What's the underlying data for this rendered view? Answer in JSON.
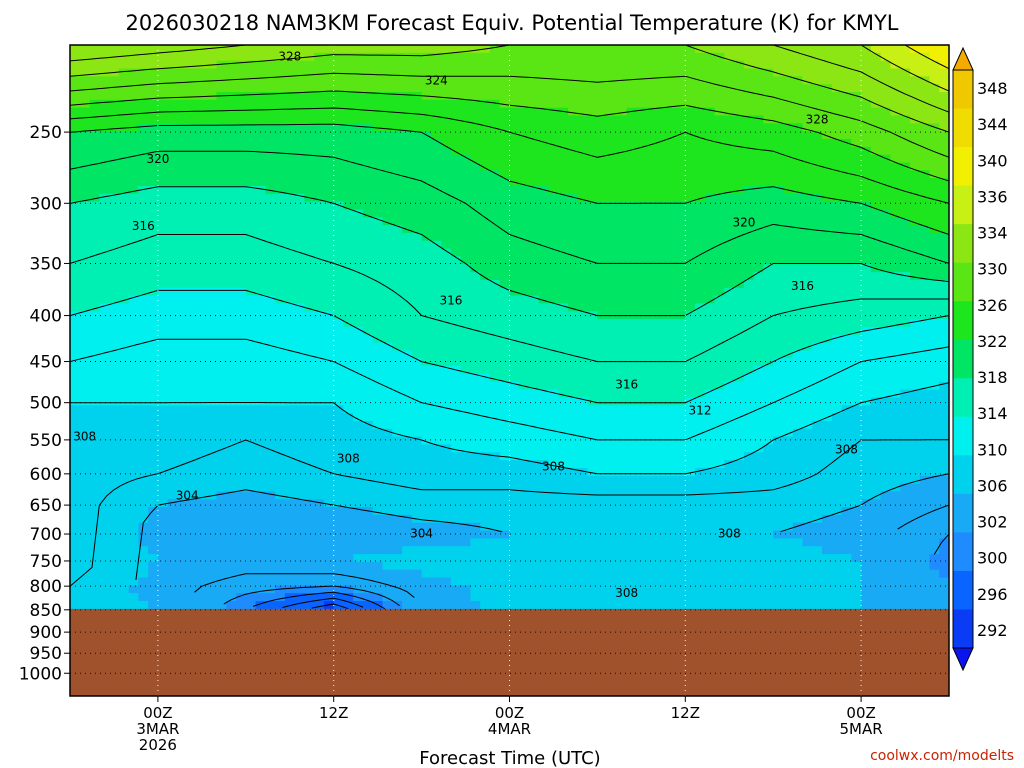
{
  "title": "2026030218 NAM3KM Forecast Equiv. Potential Temperature (K) for KMYL",
  "credit": "coolwx.com/modelts",
  "chart_data": {
    "type": "heatmap",
    "title": "2026030218 NAM3KM Forecast Equiv. Potential Temperature (K) for KMYL",
    "xlabel": "Forecast Time (UTC)",
    "ylabel": "",
    "x_ticks": [
      {
        "hour": 6,
        "lines": [
          "00Z",
          "3MAR",
          "2026"
        ]
      },
      {
        "hour": 18,
        "lines": [
          "12Z"
        ]
      },
      {
        "hour": 30,
        "lines": [
          "00Z",
          "4MAR"
        ]
      },
      {
        "hour": 42,
        "lines": [
          "12Z"
        ]
      },
      {
        "hour": 54,
        "lines": [
          "00Z",
          "5MAR"
        ]
      }
    ],
    "x_range_hours": [
      0,
      60
    ],
    "y_ticks": [
      250,
      300,
      350,
      400,
      450,
      500,
      550,
      600,
      650,
      700,
      750,
      800,
      850,
      900,
      950,
      1000
    ],
    "y_range_hpa": [
      200,
      1060
    ],
    "y_scale": "log-pressure",
    "grid": "dotted",
    "surface_pressure_hpa": 848,
    "below_ground_color": "#a0522d",
    "units": "K",
    "colorbar": {
      "levels": [
        292,
        296,
        300,
        302,
        306,
        310,
        314,
        318,
        322,
        326,
        330,
        334,
        336,
        340,
        344,
        348
      ],
      "colors": [
        "#0a14f0",
        "#0a3cf5",
        "#0a64ff",
        "#1e8cff",
        "#18aaf5",
        "#00d2ee",
        "#00f0f0",
        "#00f0b4",
        "#00e664",
        "#1ee61e",
        "#5ae614",
        "#8ce614",
        "#c8f014",
        "#f0f000",
        "#f0dc00",
        "#f0c800",
        "#f5aa00"
      ]
    },
    "contour_interval": 2,
    "contour_labels": [
      {
        "value": 328,
        "hour": 15,
        "hpa": 206
      },
      {
        "value": 324,
        "hour": 25,
        "hpa": 219
      },
      {
        "value": 328,
        "hour": 51,
        "hpa": 242
      },
      {
        "value": 320,
        "hour": 6,
        "hpa": 268
      },
      {
        "value": 316,
        "hour": 5,
        "hpa": 318
      },
      {
        "value": 320,
        "hour": 46,
        "hpa": 315
      },
      {
        "value": 316,
        "hour": 26,
        "hpa": 385
      },
      {
        "value": 316,
        "hour": 50,
        "hpa": 371
      },
      {
        "value": 316,
        "hour": 38,
        "hpa": 477
      },
      {
        "value": 312,
        "hour": 43,
        "hpa": 510
      },
      {
        "value": 308,
        "hour": 1,
        "hpa": 545
      },
      {
        "value": 308,
        "hour": 19,
        "hpa": 577
      },
      {
        "value": 308,
        "hour": 33,
        "hpa": 589
      },
      {
        "value": 308,
        "hour": 53,
        "hpa": 564
      },
      {
        "value": 304,
        "hour": 8,
        "hpa": 634
      },
      {
        "value": 304,
        "hour": 24,
        "hpa": 699
      },
      {
        "value": 308,
        "hour": 45,
        "hpa": 699
      },
      {
        "value": 308,
        "hour": 38,
        "hpa": 814
      }
    ],
    "time_pressure_field": {
      "hours": [
        0,
        6,
        12,
        18,
        24,
        30,
        36,
        42,
        48,
        54,
        60
      ],
      "pressure_hpa": [
        200,
        250,
        300,
        350,
        400,
        450,
        500,
        550,
        600,
        650,
        700,
        750,
        800,
        850
      ],
      "theta_e_K": [
        [
          334,
          333,
          332,
          331,
          331,
          330,
          330,
          330,
          332,
          334,
          338
        ],
        [
          322,
          321,
          321,
          321,
          322,
          324,
          325,
          324,
          325,
          327,
          330
        ],
        [
          318,
          317,
          317,
          318,
          319,
          321,
          322,
          322,
          321,
          322,
          324
        ],
        [
          316,
          315,
          315,
          316,
          317,
          319,
          320,
          320,
          318,
          318,
          320
        ],
        [
          314,
          313,
          313,
          314,
          316,
          317,
          318,
          318,
          316,
          315,
          314
        ],
        [
          312,
          311,
          311,
          312,
          314,
          315,
          316,
          316,
          314,
          312,
          311
        ],
        [
          310,
          310,
          310,
          310,
          312,
          313,
          314,
          314,
          312,
          310,
          309
        ],
        [
          309,
          309,
          308,
          309,
          310,
          311,
          312,
          312,
          310,
          308,
          308
        ],
        [
          309,
          308,
          307,
          308,
          309,
          309,
          310,
          310,
          309,
          307,
          306
        ],
        [
          309,
          306,
          305,
          306,
          307,
          307,
          307,
          307,
          307,
          306,
          304
        ],
        [
          309,
          305,
          304,
          304,
          305,
          306,
          307,
          307,
          306,
          305,
          302
        ],
        [
          309,
          306,
          305,
          306,
          307,
          307,
          309,
          308,
          307,
          306,
          301
        ],
        [
          308,
          305,
          303,
          302,
          305,
          307,
          309,
          308,
          307,
          306,
          302
        ],
        [
          308,
          306,
          300,
          294,
          304,
          307,
          307,
          307,
          306,
          306,
          304
        ]
      ]
    }
  }
}
